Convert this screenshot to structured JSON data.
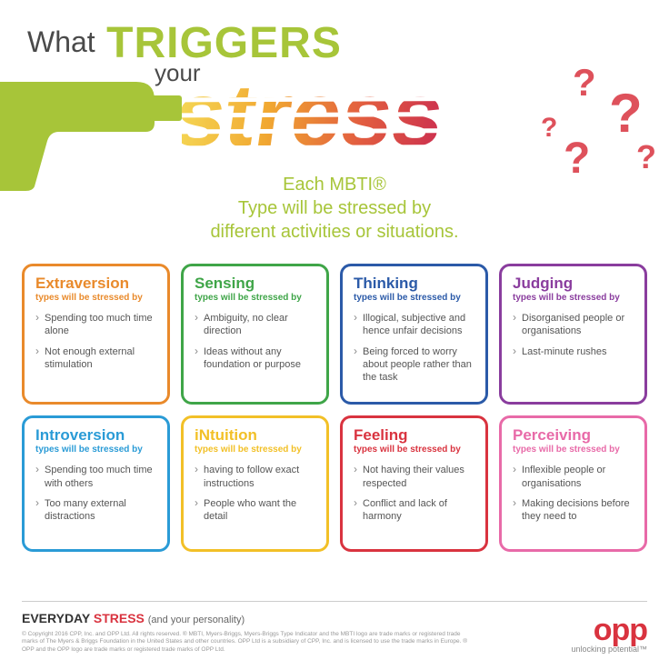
{
  "header": {
    "what": "What",
    "triggers": "TRIGGERS",
    "your": "your",
    "stress_word": "stress",
    "subheading_l1": "Each MBTI®",
    "subheading_l2": "Type will be stressed by",
    "subheading_l3": "different activities or situations."
  },
  "colors": {
    "accent_green": "#a7c539",
    "extraversion": "#e98a2b",
    "sensing": "#3fa548",
    "thinking": "#2b5aa8",
    "judging": "#8a3d9e",
    "introversion": "#2a9bd6",
    "intuition": "#f2c027",
    "feeling": "#d9333f",
    "perceiving": "#e86aa8",
    "logo": "#d9333f"
  },
  "cards": [
    {
      "title": "Extraversion",
      "sub": "types will be stressed by",
      "color": "#e98a2b",
      "items": [
        "Spending too much time alone",
        "Not enough external stimulation"
      ]
    },
    {
      "title": "Sensing",
      "sub": "types will be stressed by",
      "color": "#3fa548",
      "items": [
        "Ambiguity, no clear direction",
        "Ideas without any foundation or purpose"
      ]
    },
    {
      "title": "Thinking",
      "sub": "types will be stressed by",
      "color": "#2b5aa8",
      "items": [
        "Illogical, subjective and hence unfair decisions",
        "Being forced to worry about people rather than the task"
      ]
    },
    {
      "title": "Judging",
      "sub": "types will be stressed by",
      "color": "#8a3d9e",
      "items": [
        "Disorganised people or organisations",
        "Last-minute rushes"
      ]
    },
    {
      "title": "Introversion",
      "sub": "types will be stressed by",
      "color": "#2a9bd6",
      "items": [
        "Spending too much time with others",
        "Too many external distractions"
      ]
    },
    {
      "title": "iNtuition",
      "sub": "types will be stressed by",
      "color": "#f2c027",
      "items": [
        "having to follow exact instructions",
        "People who want the detail"
      ]
    },
    {
      "title": "Feeling",
      "sub": "types will be stressed by",
      "color": "#d9333f",
      "items": [
        "Not having their values respected",
        "Conflict and lack of harmony"
      ]
    },
    {
      "title": "Perceiving",
      "sub": "types will be stressed by",
      "color": "#e86aa8",
      "items": [
        "Inflexible people or organisations",
        "Making decisions before they need to"
      ]
    }
  ],
  "footer": {
    "brand": "EVERYDAY",
    "brand_stress": "STRESS",
    "tagline": "(and your personality)",
    "copyright": "© Copyright 2016 CPP, Inc. and OPP Ltd. All rights reserved. ® MBTI, Myers-Briggs, Myers-Briggs Type Indicator and the MBTI logo are trade marks or registered trade marks of The Myers & Briggs Foundation in the United States and other countries. OPP Ltd is a subsidiary of CPP, Inc. and is licensed to use the trade marks in Europe. ® OPP and the OPP logo are trade marks or registered trade marks of OPP Ltd.",
    "logo": "opp",
    "logo_tag": "unlocking potential™"
  }
}
